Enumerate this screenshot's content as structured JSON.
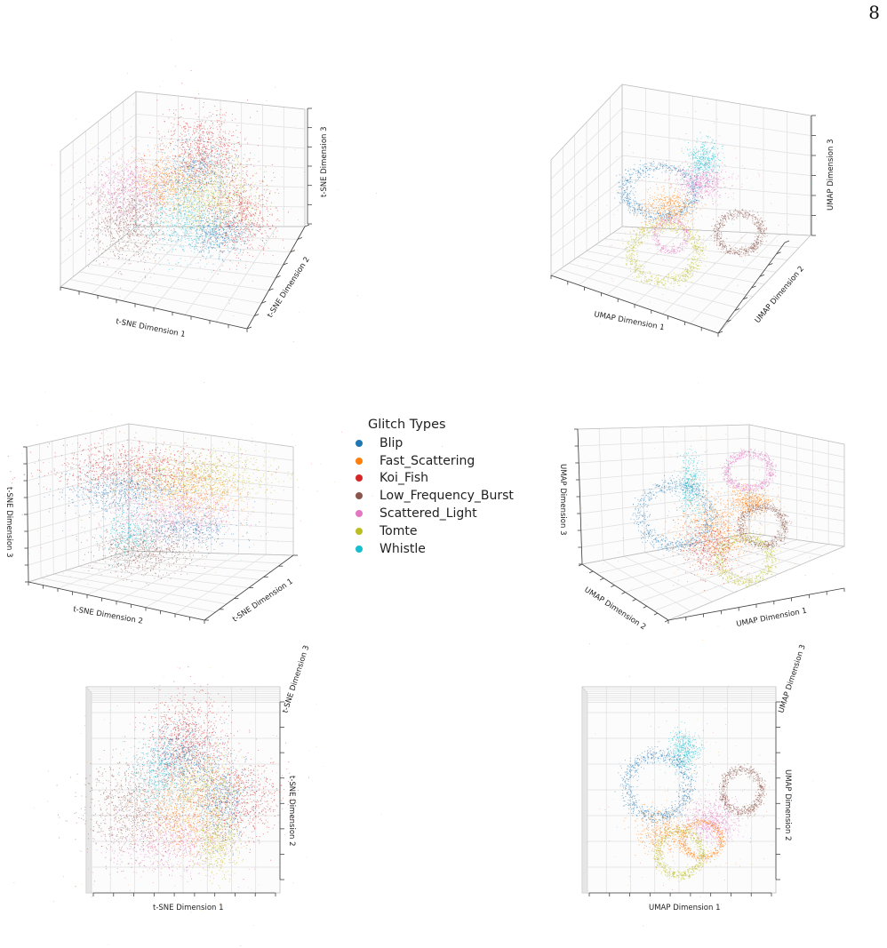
{
  "page": {
    "number": "8"
  },
  "legend": {
    "title": "Glitch Types",
    "items": [
      {
        "label": "Blip",
        "color": "#1f77b4"
      },
      {
        "label": "Fast_Scattering",
        "color": "#ff7f0e"
      },
      {
        "label": "Koi_Fish",
        "color": "#d62728"
      },
      {
        "label": "Low_Frequency_Burst",
        "color": "#8c564b"
      },
      {
        "label": "Scattered_Light",
        "color": "#e377c2"
      },
      {
        "label": "Tomte",
        "color": "#bcbd22"
      },
      {
        "label": "Whistle",
        "color": "#17becf"
      }
    ]
  },
  "chart_data": [
    {
      "type": "scatter",
      "projection": "3d",
      "method": "t-SNE",
      "view": "oblique",
      "xlabel": "t-SNE Dimension 1",
      "ylabel": "t-SNE Dimension 2",
      "zlabel": "t-SNE Dimension 3",
      "grid": true,
      "series": [
        {
          "name": "Blip",
          "color": "#1f77b4"
        },
        {
          "name": "Fast_Scattering",
          "color": "#ff7f0e"
        },
        {
          "name": "Koi_Fish",
          "color": "#d62728"
        },
        {
          "name": "Low_Frequency_Burst",
          "color": "#8c564b"
        },
        {
          "name": "Scattered_Light",
          "color": "#e377c2"
        },
        {
          "name": "Tomte",
          "color": "#bcbd22"
        },
        {
          "name": "Whistle",
          "color": "#17becf"
        }
      ]
    },
    {
      "type": "scatter",
      "projection": "3d",
      "method": "UMAP",
      "view": "oblique",
      "xlabel": "UMAP Dimension 1",
      "ylabel": "UMAP Dimension 2",
      "zlabel": "UMAP Dimension 3",
      "grid": true
    },
    {
      "type": "scatter",
      "projection": "3d",
      "method": "t-SNE",
      "view": "rotated",
      "xlabel": "t-SNE Dimension 1",
      "ylabel": "t-SNE Dimension 2",
      "zlabel": "t-SNE Dimension 3",
      "grid": true
    },
    {
      "type": "scatter",
      "projection": "3d",
      "method": "UMAP",
      "view": "rotated",
      "xlabel": "UMAP Dimension 1",
      "ylabel": "UMAP Dimension 2",
      "zlabel": "UMAP Dimension 3",
      "grid": true
    },
    {
      "type": "scatter",
      "projection": "3d",
      "method": "t-SNE",
      "view": "top",
      "xlabel": "t-SNE Dimension 1",
      "ylabel": "t-SNE Dimension 2",
      "zlabel": "t-SNE Dimension 3",
      "grid": true
    },
    {
      "type": "scatter",
      "projection": "3d",
      "method": "UMAP",
      "view": "top",
      "xlabel": "UMAP Dimension 1",
      "ylabel": "UMAP Dimension 2",
      "zlabel": "UMAP Dimension 3",
      "grid": true
    }
  ]
}
